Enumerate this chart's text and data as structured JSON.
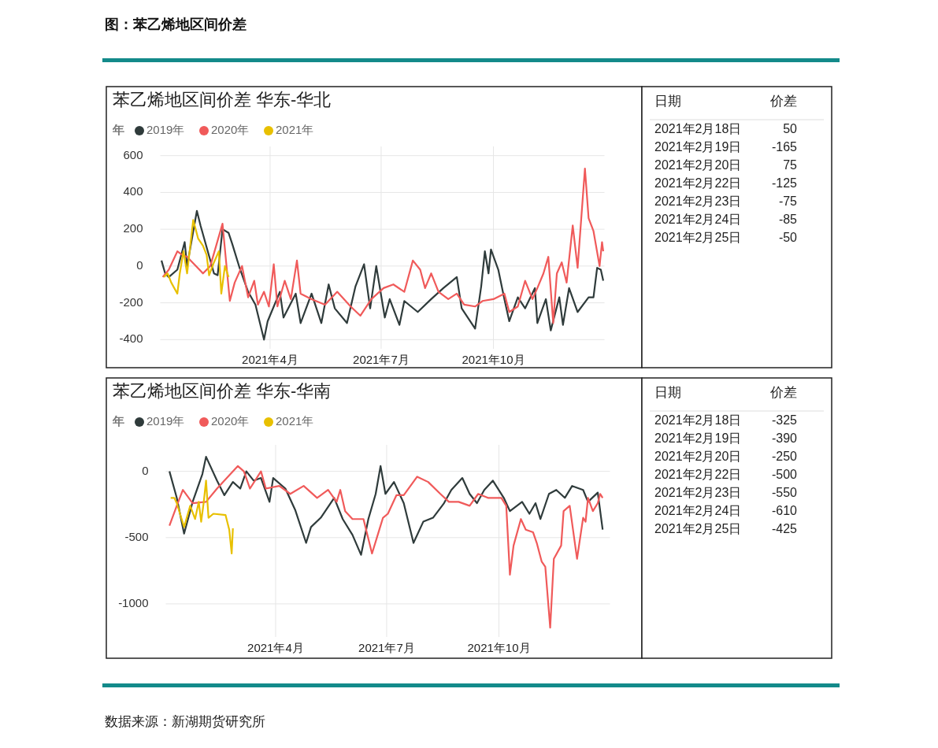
{
  "chart_data": [
    {
      "type": "line",
      "title": "苯乙烯地区间价差 华东-华北",
      "legend_title": "年",
      "legend": "top left",
      "grid": true,
      "annotations": [
        "图：苯乙烯地区间价差"
      ],
      "xlim": [
        "2021-01-01",
        "2021-12-31"
      ],
      "xticks": [
        {
          "value": "2021-04-01",
          "label": "2021年4月"
        },
        {
          "value": "2021-07-01",
          "label": "2021年7月"
        },
        {
          "value": "2021-10-01",
          "label": "2021年10月"
        }
      ],
      "ylim": [
        -450,
        650
      ],
      "yticks": [
        -400,
        -200,
        0,
        200,
        400,
        600
      ],
      "series": [
        {
          "name": "2019年",
          "color": "#2f3b3b",
          "x": [
            "2021-01-02",
            "2021-01-05",
            "2021-01-08",
            "2021-01-15",
            "2021-01-21",
            "2021-01-23",
            "2021-01-31",
            "2021-02-03",
            "2021-02-14",
            "2021-02-17",
            "2021-02-21",
            "2021-02-26",
            "2021-03-01",
            "2021-03-07",
            "2021-03-14",
            "2021-03-20",
            "2021-03-27",
            "2021-03-30",
            "2021-04-09",
            "2021-04-12",
            "2021-04-22",
            "2021-04-26",
            "2021-05-05",
            "2021-05-13",
            "2021-05-19",
            "2021-05-24",
            "2021-06-03",
            "2021-06-10",
            "2021-06-17",
            "2021-06-22",
            "2021-06-27",
            "2021-07-04",
            "2021-07-08",
            "2021-07-16",
            "2021-07-20",
            "2021-07-31",
            "2021-08-11",
            "2021-08-21",
            "2021-09-01",
            "2021-09-05",
            "2021-09-16",
            "2021-09-21",
            "2021-09-24",
            "2021-09-27",
            "2021-09-29",
            "2021-10-05",
            "2021-10-10",
            "2021-10-14",
            "2021-10-21",
            "2021-10-27",
            "2021-11-04",
            "2021-11-06",
            "2021-11-13",
            "2021-11-17",
            "2021-11-24",
            "2021-11-27",
            "2021-12-02",
            "2021-12-09",
            "2021-12-18",
            "2021-12-22",
            "2021-12-25",
            "2021-12-28",
            "2021-12-30"
          ],
          "values": [
            30,
            -40,
            -60,
            -20,
            130,
            0,
            300,
            220,
            -40,
            -50,
            200,
            180,
            120,
            -10,
            -140,
            -210,
            -400,
            -300,
            -140,
            -280,
            -150,
            -310,
            -150,
            -310,
            -100,
            -230,
            -310,
            -110,
            10,
            -230,
            0,
            -280,
            -180,
            -320,
            -190,
            -250,
            -180,
            -120,
            -60,
            -230,
            -340,
            -110,
            80,
            -40,
            90,
            -20,
            -180,
            -300,
            -170,
            -230,
            -120,
            -310,
            -180,
            -350,
            -170,
            -320,
            -120,
            -250,
            -170,
            -170,
            -10,
            -20,
            -80
          ]
        },
        {
          "name": "2020年",
          "color": "#f05a5a",
          "x": [
            "2021-01-03",
            "2021-01-08",
            "2021-01-15",
            "2021-01-19",
            "2021-01-23",
            "2021-02-05",
            "2021-02-11",
            "2021-02-21",
            "2021-02-27",
            "2021-03-03",
            "2021-03-09",
            "2021-03-14",
            "2021-03-19",
            "2021-03-22",
            "2021-03-27",
            "2021-03-31",
            "2021-04-04",
            "2021-04-07",
            "2021-04-13",
            "2021-04-18",
            "2021-04-23",
            "2021-04-26",
            "2021-05-05",
            "2021-05-16",
            "2021-05-26",
            "2021-06-06",
            "2021-06-14",
            "2021-06-23",
            "2021-07-03",
            "2021-07-11",
            "2021-07-20",
            "2021-07-27",
            "2021-08-02",
            "2021-08-06",
            "2021-08-11",
            "2021-08-17",
            "2021-08-25",
            "2021-09-01",
            "2021-09-07",
            "2021-09-16",
            "2021-09-22",
            "2021-10-01",
            "2021-10-10",
            "2021-10-14",
            "2021-10-21",
            "2021-10-27",
            "2021-11-02",
            "2021-11-06",
            "2021-11-11",
            "2021-11-15",
            "2021-11-19",
            "2021-11-22",
            "2021-11-26",
            "2021-11-30",
            "2021-12-05",
            "2021-12-09",
            "2021-12-15",
            "2021-12-18",
            "2021-12-22",
            "2021-12-27",
            "2021-12-29",
            "2021-12-30"
          ],
          "values": [
            -60,
            -20,
            80,
            60,
            50,
            -40,
            0,
            230,
            -190,
            -90,
            0,
            -170,
            -80,
            -210,
            -140,
            -220,
            10,
            -220,
            -80,
            -180,
            30,
            -150,
            -180,
            -210,
            -140,
            -220,
            -270,
            -180,
            -120,
            -100,
            -140,
            30,
            -20,
            -120,
            -40,
            -140,
            -180,
            -150,
            -210,
            -220,
            -190,
            -180,
            -150,
            -250,
            -220,
            -80,
            -180,
            -120,
            -40,
            50,
            -310,
            -40,
            20,
            -90,
            220,
            -10,
            530,
            260,
            190,
            0,
            130,
            80
          ]
        },
        {
          "name": "2021年",
          "color": "#e8c000",
          "x": [
            "2021-01-04",
            "2021-01-07",
            "2021-01-10",
            "2021-01-15",
            "2021-01-17",
            "2021-01-20",
            "2021-01-23",
            "2021-01-28",
            "2021-02-01",
            "2021-02-05",
            "2021-02-08",
            "2021-02-10",
            "2021-02-14",
            "2021-02-18",
            "2021-02-20",
            "2021-02-23",
            "2021-02-26"
          ],
          "values": [
            -60,
            -40,
            -90,
            -150,
            -40,
            80,
            -40,
            250,
            150,
            110,
            60,
            -50,
            20,
            80,
            -150,
            0,
            -60
          ]
        }
      ]
    },
    {
      "type": "other",
      "xlabel": "日期",
      "ylabel": "价差",
      "data_labels": true,
      "categories": [
        "2021年2月18日",
        "2021年2月19日",
        "2021年2月20日",
        "2021年2月22日",
        "2021年2月23日",
        "2021年2月24日",
        "2021年2月25日"
      ],
      "values": [
        50,
        -165,
        75,
        -125,
        -75,
        -85,
        -50
      ]
    },
    {
      "type": "line",
      "title": "苯乙烯地区间价差 华东-华南",
      "legend_title": "年",
      "legend": "top left",
      "grid": true,
      "xlim": [
        "2021-01-01",
        "2021-12-31"
      ],
      "xticks": [
        {
          "value": "2021-04-01",
          "label": "2021年4月"
        },
        {
          "value": "2021-07-01",
          "label": "2021年7月"
        },
        {
          "value": "2021-10-01",
          "label": "2021年10月"
        }
      ],
      "ylim": [
        -1250,
        200
      ],
      "yticks": [
        -1000,
        -500,
        0
      ],
      "series": [
        {
          "name": "2019年",
          "color": "#2f3b3b",
          "x": [
            "2021-01-04",
            "2021-01-10",
            "2021-01-16",
            "2021-01-23",
            "2021-01-31",
            "2021-02-03",
            "2021-02-12",
            "2021-02-18",
            "2021-02-25",
            "2021-03-03",
            "2021-03-08",
            "2021-03-14",
            "2021-03-20",
            "2021-03-27",
            "2021-03-30",
            "2021-04-09",
            "2021-04-17",
            "2021-04-26",
            "2021-04-30",
            "2021-05-08",
            "2021-05-19",
            "2021-05-26",
            "2021-06-03",
            "2021-06-10",
            "2021-06-16",
            "2021-06-22",
            "2021-06-26",
            "2021-06-30",
            "2021-07-07",
            "2021-07-15",
            "2021-07-23",
            "2021-07-31",
            "2021-08-08",
            "2021-08-17",
            "2021-08-23",
            "2021-09-01",
            "2021-09-07",
            "2021-09-13",
            "2021-09-19",
            "2021-09-26",
            "2021-10-05",
            "2021-10-10",
            "2021-10-20",
            "2021-10-26",
            "2021-10-31",
            "2021-11-04",
            "2021-11-11",
            "2021-11-17",
            "2021-11-24",
            "2021-11-30",
            "2021-12-09",
            "2021-12-13",
            "2021-12-21",
            "2021-12-25"
          ],
          "values": [
            0,
            -200,
            -470,
            -230,
            -20,
            110,
            -70,
            -180,
            -80,
            -130,
            0,
            -70,
            -50,
            -230,
            -50,
            -130,
            -290,
            -540,
            -420,
            -350,
            -200,
            -360,
            -480,
            -630,
            -360,
            -170,
            40,
            -170,
            -80,
            -240,
            -540,
            -380,
            -350,
            -240,
            -140,
            -50,
            -170,
            -240,
            -140,
            -70,
            -200,
            -300,
            -230,
            -320,
            -240,
            -360,
            -170,
            -140,
            -200,
            -110,
            -140,
            -230,
            -160,
            -440
          ]
        },
        {
          "name": "2020年",
          "color": "#f05a5a",
          "x": [
            "2021-01-04",
            "2021-01-10",
            "2021-01-15",
            "2021-01-23",
            "2021-02-03",
            "2021-02-12",
            "2021-02-23",
            "2021-03-01",
            "2021-03-06",
            "2021-03-11",
            "2021-03-20",
            "2021-03-24",
            "2021-04-04",
            "2021-04-13",
            "2021-04-24",
            "2021-05-05",
            "2021-05-14",
            "2021-05-21",
            "2021-05-24",
            "2021-05-28",
            "2021-06-03",
            "2021-06-12",
            "2021-06-19",
            "2021-06-25",
            "2021-06-28",
            "2021-07-02",
            "2021-07-09",
            "2021-07-15",
            "2021-07-26",
            "2021-08-04",
            "2021-08-14",
            "2021-08-21",
            "2021-08-29",
            "2021-09-07",
            "2021-09-14",
            "2021-09-22",
            "2021-10-03",
            "2021-10-07",
            "2021-10-10",
            "2021-10-13",
            "2021-10-19",
            "2021-10-23",
            "2021-10-29",
            "2021-11-01",
            "2021-11-05",
            "2021-11-08",
            "2021-11-12",
            "2021-11-15",
            "2021-11-21",
            "2021-11-23",
            "2021-11-28",
            "2021-12-04",
            "2021-12-09",
            "2021-12-11",
            "2021-12-13",
            "2021-12-17",
            "2021-12-21",
            "2021-12-23",
            "2021-12-25"
          ],
          "values": [
            -410,
            -260,
            -140,
            -240,
            -230,
            -130,
            -20,
            40,
            0,
            -130,
            0,
            -130,
            -110,
            -170,
            -110,
            -200,
            -140,
            -230,
            -140,
            -300,
            -360,
            -360,
            -620,
            -440,
            -350,
            -320,
            -180,
            -180,
            -40,
            -80,
            -170,
            -230,
            -230,
            -260,
            -170,
            -200,
            -200,
            -260,
            -780,
            -560,
            -360,
            -440,
            -460,
            -540,
            -680,
            -720,
            -1180,
            -660,
            -560,
            -300,
            -260,
            -660,
            -350,
            -380,
            -200,
            -300,
            -240,
            -170,
            -200
          ]
        },
        {
          "name": "2021年",
          "color": "#e8c000",
          "x": [
            "2021-01-05",
            "2021-01-08",
            "2021-01-10",
            "2021-01-16",
            "2021-01-21",
            "2021-01-25",
            "2021-01-28",
            "2021-01-30",
            "2021-02-01",
            "2021-02-03",
            "2021-02-05",
            "2021-02-09",
            "2021-02-19",
            "2021-02-22",
            "2021-02-24",
            "2021-02-25"
          ],
          "values": [
            -200,
            -200,
            -240,
            -420,
            -260,
            -360,
            -230,
            -380,
            -240,
            -70,
            -350,
            -320,
            -330,
            -440,
            -620,
            -430
          ]
        }
      ]
    },
    {
      "type": "other",
      "xlabel": "日期",
      "ylabel": "价差",
      "data_labels": true,
      "annotations": [
        "数据来源：新湖期货研究所"
      ],
      "categories": [
        "2021年2月18日",
        "2021年2月19日",
        "2021年2月20日",
        "2021年2月22日",
        "2021年2月23日",
        "2021年2月24日",
        "2021年2月25日"
      ],
      "values": [
        -325,
        -390,
        -250,
        -500,
        -550,
        -610,
        -425
      ]
    }
  ]
}
